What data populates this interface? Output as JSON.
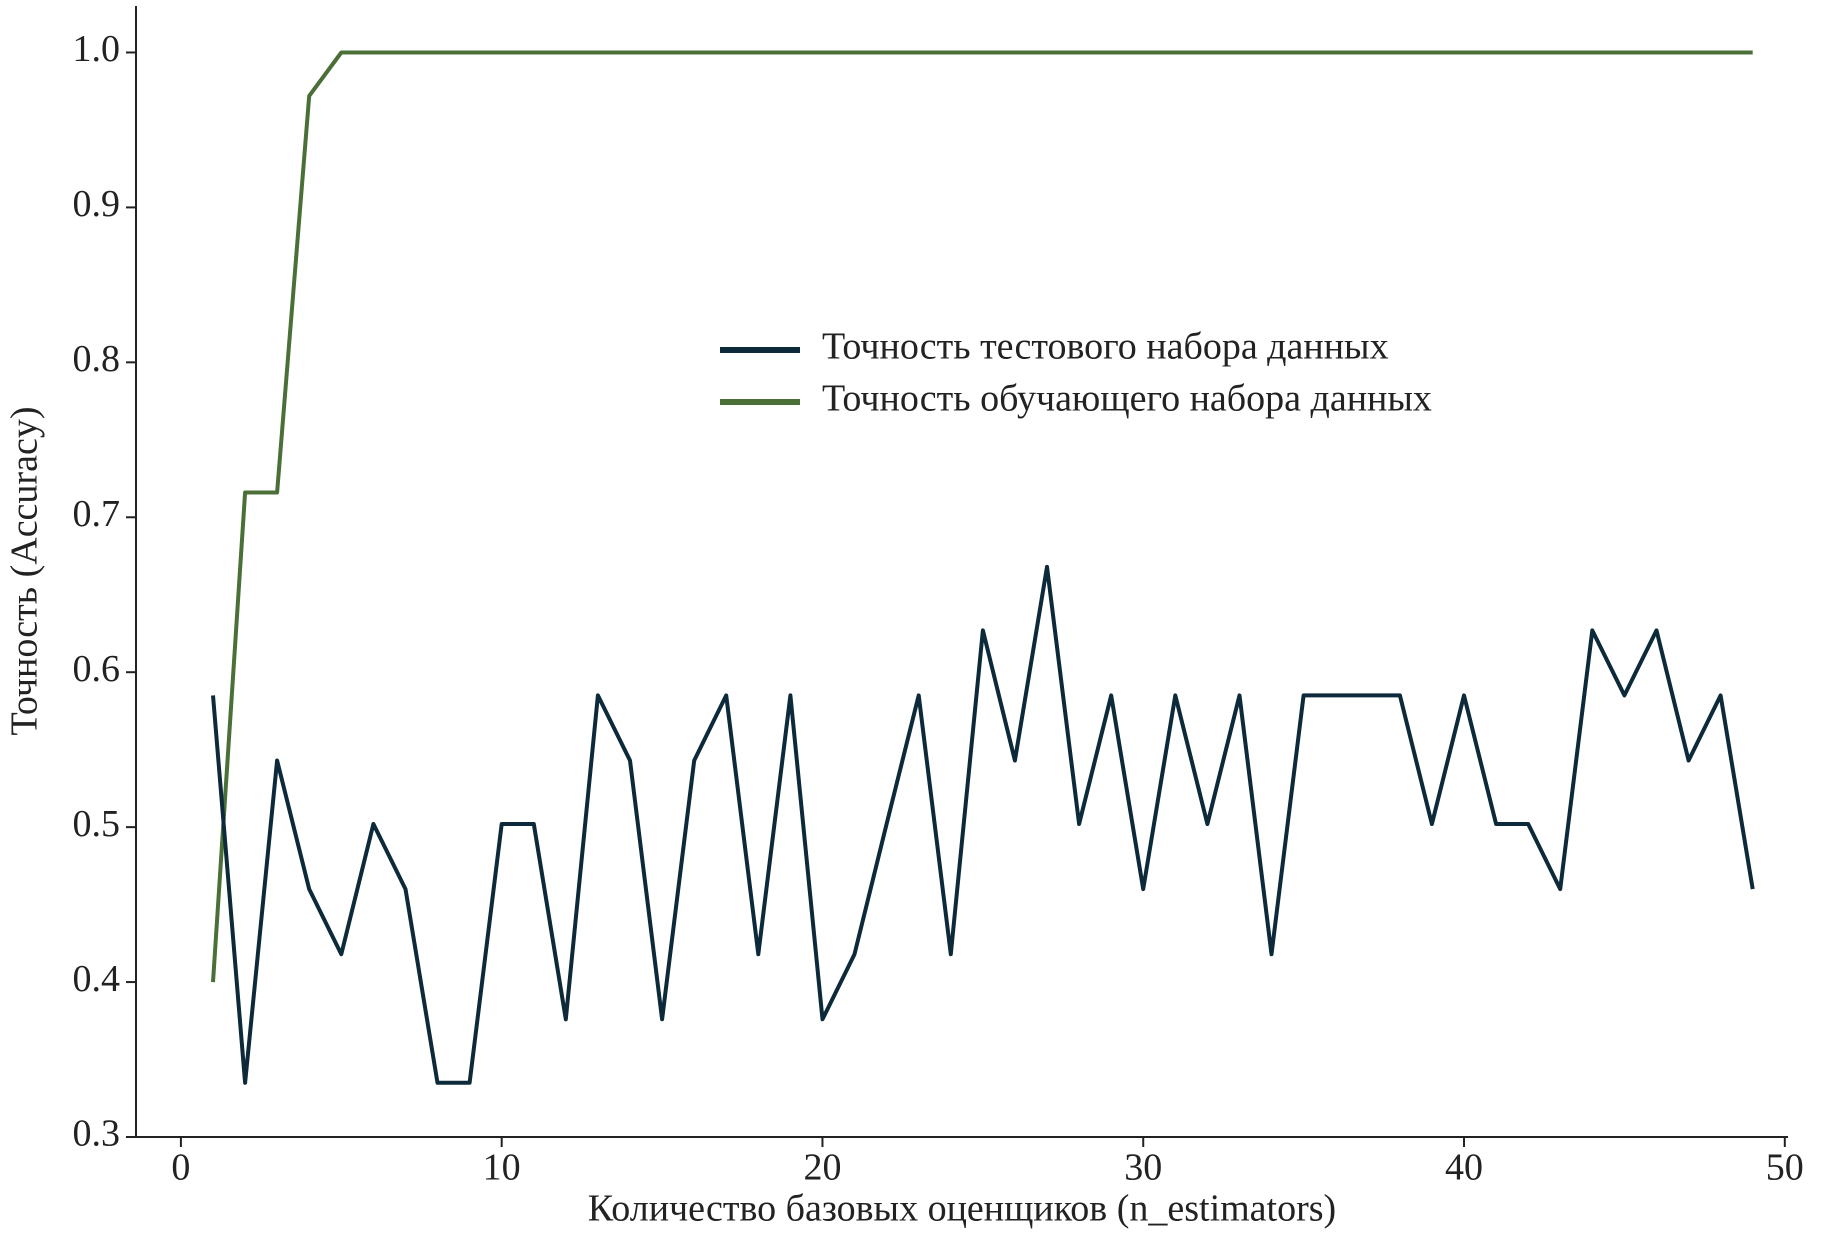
{
  "chart_data": {
    "type": "line",
    "xlabel": "Количество базовых оценщиков (n_estimators)",
    "ylabel": "Точность (Accuracy)",
    "x": [
      1,
      2,
      3,
      4,
      5,
      6,
      7,
      8,
      9,
      10,
      11,
      12,
      13,
      14,
      15,
      16,
      17,
      18,
      19,
      20,
      21,
      22,
      23,
      24,
      25,
      26,
      27,
      28,
      29,
      30,
      31,
      32,
      33,
      34,
      35,
      36,
      37,
      38,
      39,
      40,
      41,
      42,
      43,
      44,
      45,
      46,
      47,
      48,
      49
    ],
    "series": [
      {
        "name": "Точность тестового набора данных",
        "color": "#0d2a3a",
        "values": [
          0.585,
          0.335,
          0.543,
          0.46,
          0.418,
          0.502,
          0.46,
          0.335,
          0.335,
          0.502,
          0.502,
          0.376,
          0.585,
          0.543,
          0.376,
          0.543,
          0.585,
          0.418,
          0.585,
          0.376,
          0.418,
          0.502,
          0.585,
          0.418,
          0.627,
          0.543,
          0.668,
          0.502,
          0.585,
          0.46,
          0.585,
          0.502,
          0.585,
          0.418,
          0.585,
          0.585,
          0.585,
          0.585,
          0.502,
          0.585,
          0.502,
          0.502,
          0.46,
          0.627,
          0.585,
          0.627,
          0.543,
          0.585,
          0.46
        ]
      },
      {
        "name": "Точность обучающего набора данных",
        "color": "#4a7038",
        "values": [
          0.4,
          0.716,
          0.716,
          0.972,
          1,
          1,
          1,
          1,
          1,
          1,
          1,
          1,
          1,
          1,
          1,
          1,
          1,
          1,
          1,
          1,
          1,
          1,
          1,
          1,
          1,
          1,
          1,
          1,
          1,
          1,
          1,
          1,
          1,
          1,
          1,
          1,
          1,
          1,
          1,
          1,
          1,
          1,
          1,
          1,
          1,
          1,
          1,
          1,
          1
        ]
      }
    ],
    "xlim": [
      -1.4,
      50.1
    ],
    "ylim": [
      0.3,
      1.03
    ],
    "xticks": [
      0,
      10,
      20,
      30,
      40,
      50
    ],
    "yticks": [
      0.3,
      0.4,
      0.5,
      0.6,
      0.7,
      0.8,
      0.9,
      {
        "value": 1,
        "label": "1.0"
      }
    ],
    "grid": false,
    "legend": "center"
  }
}
